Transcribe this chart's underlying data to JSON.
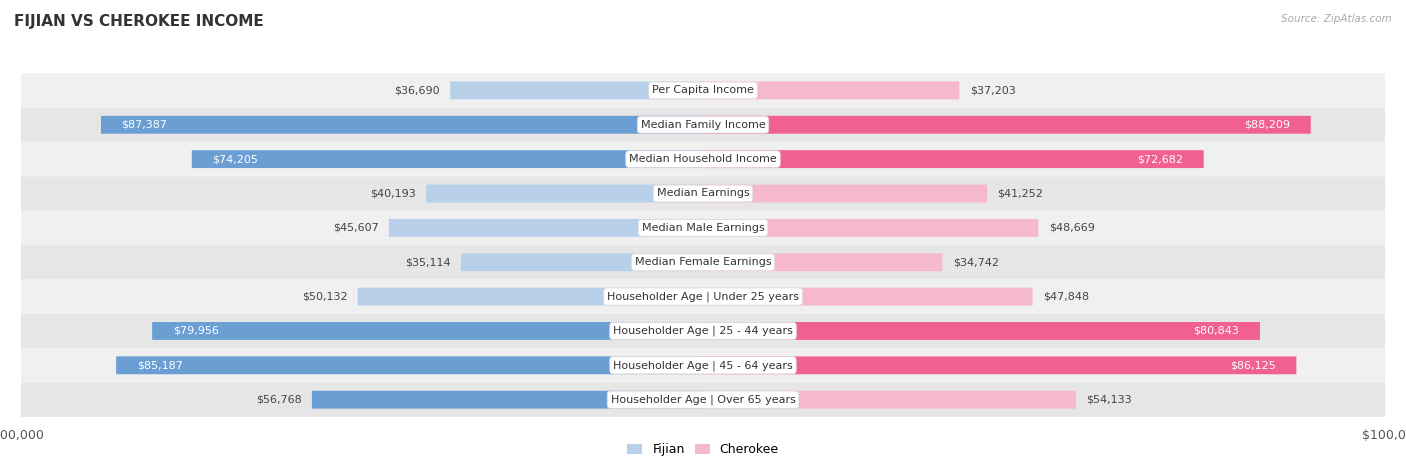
{
  "title": "FIJIAN VS CHEROKEE INCOME",
  "source": "Source: ZipAtlas.com",
  "categories": [
    "Per Capita Income",
    "Median Family Income",
    "Median Household Income",
    "Median Earnings",
    "Median Male Earnings",
    "Median Female Earnings",
    "Householder Age | Under 25 years",
    "Householder Age | 25 - 44 years",
    "Householder Age | 45 - 64 years",
    "Householder Age | Over 65 years"
  ],
  "fijian_values": [
    36690,
    87387,
    74205,
    40193,
    45607,
    35114,
    50132,
    79956,
    85187,
    56768
  ],
  "cherokee_values": [
    37203,
    88209,
    72682,
    41252,
    48669,
    34742,
    47848,
    80843,
    86125,
    54133
  ],
  "fijian_labels": [
    "$36,690",
    "$87,387",
    "$74,205",
    "$40,193",
    "$45,607",
    "$35,114",
    "$50,132",
    "$79,956",
    "$85,187",
    "$56,768"
  ],
  "cherokee_labels": [
    "$37,203",
    "$88,209",
    "$72,682",
    "$41,252",
    "$48,669",
    "$34,742",
    "$47,848",
    "$80,843",
    "$86,125",
    "$54,133"
  ],
  "fijian_color_light": "#b8d0ea",
  "fijian_color_dark": "#6b9fd4",
  "cherokee_color_light": "#f5b8cc",
  "cherokee_color_dark": "#f06090",
  "max_value": 100000,
  "bg_color": "#ffffff",
  "row_bg_even": "#f0f0f0",
  "row_bg_odd": "#e6e6e6",
  "title_fontsize": 11,
  "label_fontsize": 8,
  "cat_fontsize": 8,
  "legend_fontsize": 9,
  "axis_label_fontsize": 9,
  "inside_threshold_fijian": [
    false,
    true,
    true,
    false,
    false,
    false,
    false,
    true,
    true,
    false
  ],
  "inside_threshold_cherokee": [
    false,
    true,
    true,
    false,
    false,
    false,
    false,
    true,
    true,
    false
  ]
}
